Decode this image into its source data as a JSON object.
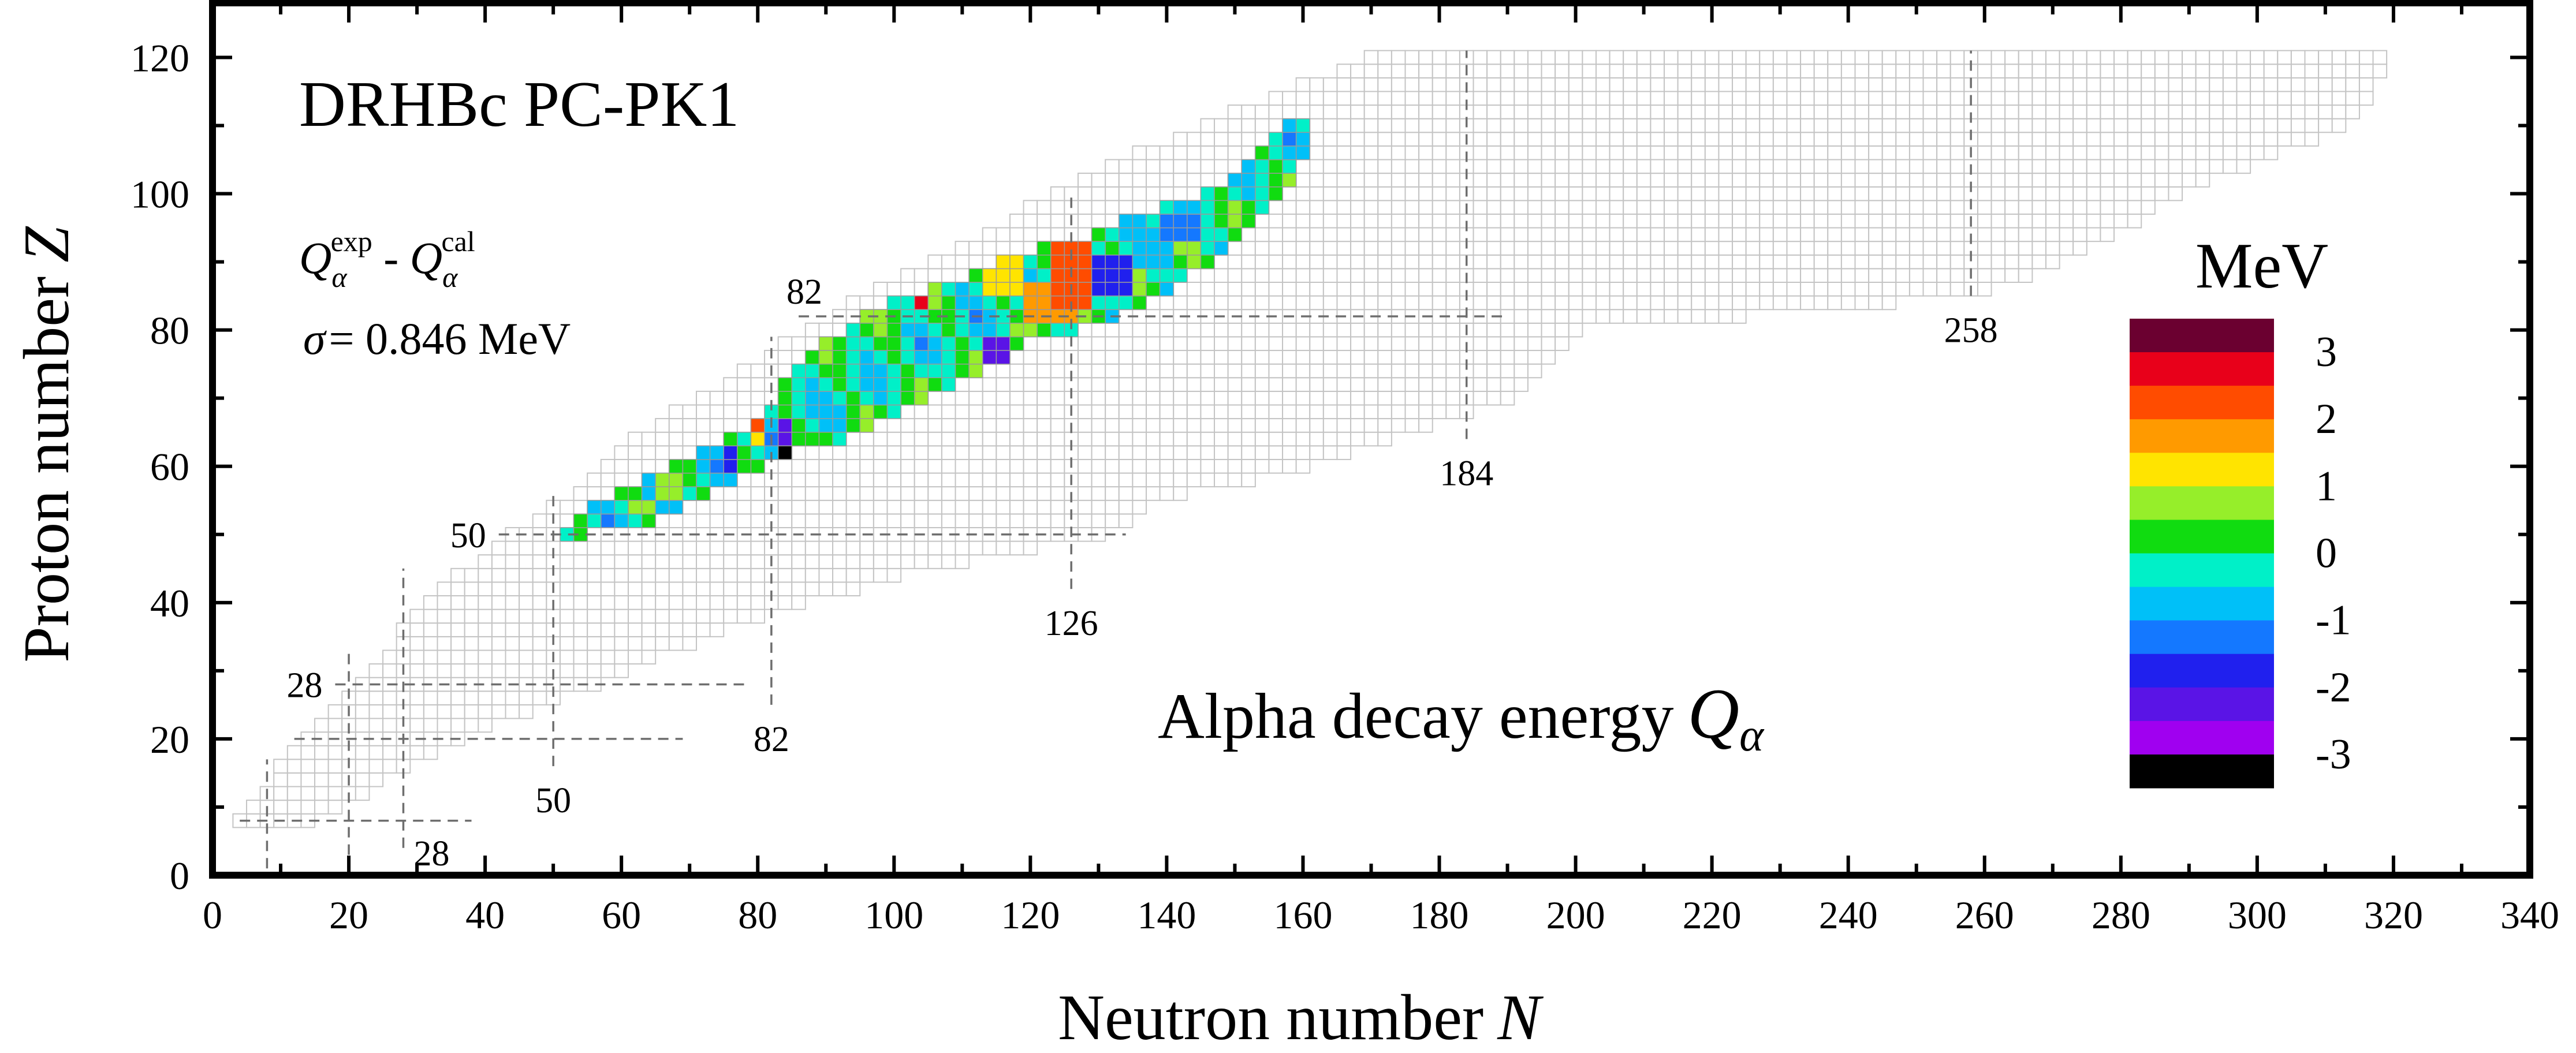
{
  "chart_data": {
    "type": "heatmap",
    "title": "DRHBc  PC-PK1",
    "annotation_main": "Alpha decay energy",
    "annotation_symbol": "Q",
    "annotation_symbol_sub": "α",
    "formula": {
      "q": "Q",
      "sub": "α",
      "exp": "exp",
      "cal": "cal",
      "minus": " - "
    },
    "sigma_label": "σ",
    "sigma_text": "= 0.846 MeV",
    "xlabel": "Neutron number",
    "xlabel_symbol": "N",
    "ylabel": "Proton number",
    "ylabel_symbol": "Z",
    "xlim": [
      0,
      340
    ],
    "ylim": [
      0,
      128
    ],
    "xticks": [
      0,
      20,
      40,
      60,
      80,
      100,
      120,
      140,
      160,
      180,
      200,
      220,
      240,
      260,
      280,
      300,
      320,
      340
    ],
    "yticks": [
      0,
      20,
      40,
      60,
      80,
      100,
      120
    ],
    "colorbar": {
      "unit": "MeV",
      "range": [
        -3.5,
        3.5
      ],
      "tick_labels": [
        "3",
        "2",
        "1",
        "0",
        "-1",
        "-2",
        "-3"
      ],
      "tick_values": [
        3,
        2,
        1,
        0,
        -1,
        -2,
        -3
      ],
      "colors": [
        "#6b0030",
        "#e8001a",
        "#ff4c00",
        "#ff9a00",
        "#ffe400",
        "#96ee2a",
        "#10dc10",
        "#00f0c8",
        "#00c0f8",
        "#1478ff",
        "#2020ee",
        "#5a14e6",
        "#a000f0",
        "#000000"
      ]
    },
    "magic_lines": [
      {
        "orientation": "horizontal",
        "value": 8,
        "from": 4,
        "to": 38,
        "label": ""
      },
      {
        "orientation": "horizontal",
        "value": 20,
        "from": 12,
        "to": 69,
        "label": ""
      },
      {
        "orientation": "horizontal",
        "value": 28,
        "from": 18,
        "to": 79,
        "label": "28"
      },
      {
        "orientation": "horizontal",
        "value": 50,
        "from": 42,
        "to": 134,
        "label": "50"
      },
      {
        "orientation": "horizontal",
        "value": 82,
        "from": 86,
        "to": 190,
        "label": "82"
      },
      {
        "orientation": "vertical",
        "value": 8,
        "from": 1,
        "to": 17,
        "label": ""
      },
      {
        "orientation": "vertical",
        "value": 20,
        "from": 3,
        "to": 33,
        "label": ""
      },
      {
        "orientation": "vertical",
        "value": 28,
        "from": 4,
        "to": 45,
        "label": "28"
      },
      {
        "orientation": "vertical",
        "value": 50,
        "from": 16,
        "to": 56,
        "label": "50"
      },
      {
        "orientation": "vertical",
        "value": 82,
        "from": 25,
        "to": 79,
        "label": "82"
      },
      {
        "orientation": "vertical",
        "value": 126,
        "from": 42,
        "to": 100,
        "label": "126"
      },
      {
        "orientation": "vertical",
        "value": 184,
        "from": 64,
        "to": 121,
        "label": "184"
      },
      {
        "orientation": "vertical",
        "value": 258,
        "from": 85,
        "to": 121,
        "label": "258"
      }
    ],
    "nuclide_region": [
      {
        "z": 8,
        "n_min": 4,
        "n_max": 14
      },
      {
        "z": 10,
        "n_min": 6,
        "n_max": 18
      },
      {
        "z": 15,
        "n_min": 10,
        "n_max": 26
      },
      {
        "z": 20,
        "n_min": 14,
        "n_max": 36
      },
      {
        "z": 25,
        "n_min": 18,
        "n_max": 48
      },
      {
        "z": 30,
        "n_min": 24,
        "n_max": 60
      },
      {
        "z": 35,
        "n_min": 28,
        "n_max": 72
      },
      {
        "z": 40,
        "n_min": 32,
        "n_max": 86
      },
      {
        "z": 45,
        "n_min": 38,
        "n_max": 104
      },
      {
        "z": 50,
        "n_min": 44,
        "n_max": 130
      },
      {
        "z": 55,
        "n_min": 52,
        "n_max": 138
      },
      {
        "z": 60,
        "n_min": 58,
        "n_max": 160
      },
      {
        "z": 65,
        "n_min": 64,
        "n_max": 176
      },
      {
        "z": 70,
        "n_min": 72,
        "n_max": 190
      },
      {
        "z": 75,
        "n_min": 80,
        "n_max": 196
      },
      {
        "z": 80,
        "n_min": 88,
        "n_max": 200
      },
      {
        "z": 85,
        "n_min": 96,
        "n_max": 258
      },
      {
        "z": 90,
        "n_min": 106,
        "n_max": 270
      },
      {
        "z": 95,
        "n_min": 116,
        "n_max": 280
      },
      {
        "z": 100,
        "n_min": 124,
        "n_max": 288
      },
      {
        "z": 105,
        "n_min": 134,
        "n_max": 300
      },
      {
        "z": 110,
        "n_min": 146,
        "n_max": 312
      },
      {
        "z": 115,
        "n_min": 158,
        "n_max": 316
      },
      {
        "z": 120,
        "n_min": 170,
        "n_max": 318
      }
    ],
    "exp_band": [
      {
        "z": 50,
        "n_min": 51,
        "n_max": 53
      },
      {
        "z": 52,
        "n_min": 53,
        "n_max": 63
      },
      {
        "z": 54,
        "n_min": 56,
        "n_max": 67
      },
      {
        "z": 56,
        "n_min": 60,
        "n_max": 71
      },
      {
        "z": 58,
        "n_min": 64,
        "n_max": 75
      },
      {
        "z": 60,
        "n_min": 68,
        "n_max": 79
      },
      {
        "z": 62,
        "n_min": 72,
        "n_max": 84
      },
      {
        "z": 64,
        "n_min": 76,
        "n_max": 92
      },
      {
        "z": 66,
        "n_min": 80,
        "n_max": 96
      },
      {
        "z": 68,
        "n_min": 82,
        "n_max": 100
      },
      {
        "z": 70,
        "n_min": 84,
        "n_max": 104
      },
      {
        "z": 72,
        "n_min": 84,
        "n_max": 108
      },
      {
        "z": 74,
        "n_min": 86,
        "n_max": 112
      },
      {
        "z": 76,
        "n_min": 88,
        "n_max": 116
      },
      {
        "z": 78,
        "n_min": 90,
        "n_max": 118
      },
      {
        "z": 80,
        "n_min": 94,
        "n_max": 126
      },
      {
        "z": 82,
        "n_min": 96,
        "n_max": 132
      },
      {
        "z": 84,
        "n_min": 100,
        "n_max": 136
      },
      {
        "z": 86,
        "n_min": 106,
        "n_max": 140
      },
      {
        "z": 88,
        "n_min": 112,
        "n_max": 142
      },
      {
        "z": 90,
        "n_min": 116,
        "n_max": 146
      },
      {
        "z": 92,
        "n_min": 122,
        "n_max": 148
      },
      {
        "z": 94,
        "n_min": 130,
        "n_max": 150
      },
      {
        "z": 96,
        "n_min": 134,
        "n_max": 152
      },
      {
        "z": 98,
        "n_min": 140,
        "n_max": 154
      },
      {
        "z": 100,
        "n_min": 146,
        "n_max": 156
      },
      {
        "z": 102,
        "n_min": 150,
        "n_max": 157
      },
      {
        "z": 104,
        "n_min": 152,
        "n_max": 158
      },
      {
        "z": 106,
        "n_min": 154,
        "n_max": 159
      },
      {
        "z": 108,
        "n_min": 156,
        "n_max": 160
      },
      {
        "z": 110,
        "n_min": 158,
        "n_max": 160
      }
    ],
    "exp_patches": [
      {
        "z0": 54,
        "z1": 55,
        "n0": 62,
        "n1": 65,
        "value": 1.0
      },
      {
        "z0": 56,
        "z1": 58,
        "n0": 66,
        "n1": 68,
        "value": 0.8
      },
      {
        "z0": 60,
        "z1": 62,
        "n0": 76,
        "n1": 77,
        "value": -1.5
      },
      {
        "z0": 64,
        "z1": 66,
        "n0": 80,
        "n1": 81,
        "value": 1.2
      },
      {
        "z0": 66,
        "z1": 68,
        "n0": 80,
        "n1": 81,
        "value": 2.3
      },
      {
        "z0": 61,
        "z1": 64,
        "n0": 84,
        "n1": 84,
        "value": -3.3
      },
      {
        "z0": 57,
        "z1": 60,
        "n0": 84,
        "n1": 84,
        "value": -2.8
      },
      {
        "z0": 55,
        "z1": 56,
        "n0": 84,
        "n1": 84,
        "value": -1.2
      },
      {
        "z0": 64,
        "z1": 66,
        "n0": 84,
        "n1": 85,
        "value": -2.2
      },
      {
        "z0": 84,
        "z1": 86,
        "n0": 104,
        "n1": 105,
        "value": 2.6
      },
      {
        "z0": 86,
        "z1": 90,
        "n0": 114,
        "n1": 118,
        "value": 1.1
      },
      {
        "z0": 82,
        "z1": 86,
        "n0": 120,
        "n1": 127,
        "value": 1.8
      },
      {
        "z0": 84,
        "z1": 92,
        "n0": 124,
        "n1": 128,
        "value": 2.4
      },
      {
        "z0": 86,
        "z1": 90,
        "n0": 130,
        "n1": 134,
        "value": -1.6
      },
      {
        "z0": 76,
        "z1": 78,
        "n0": 114,
        "n1": 116,
        "value": -2.0
      },
      {
        "z0": 90,
        "z1": 92,
        "n0": 136,
        "n1": 140,
        "value": -0.8
      },
      {
        "z0": 94,
        "z1": 96,
        "n0": 140,
        "n1": 144,
        "value": -1.3
      }
    ]
  }
}
